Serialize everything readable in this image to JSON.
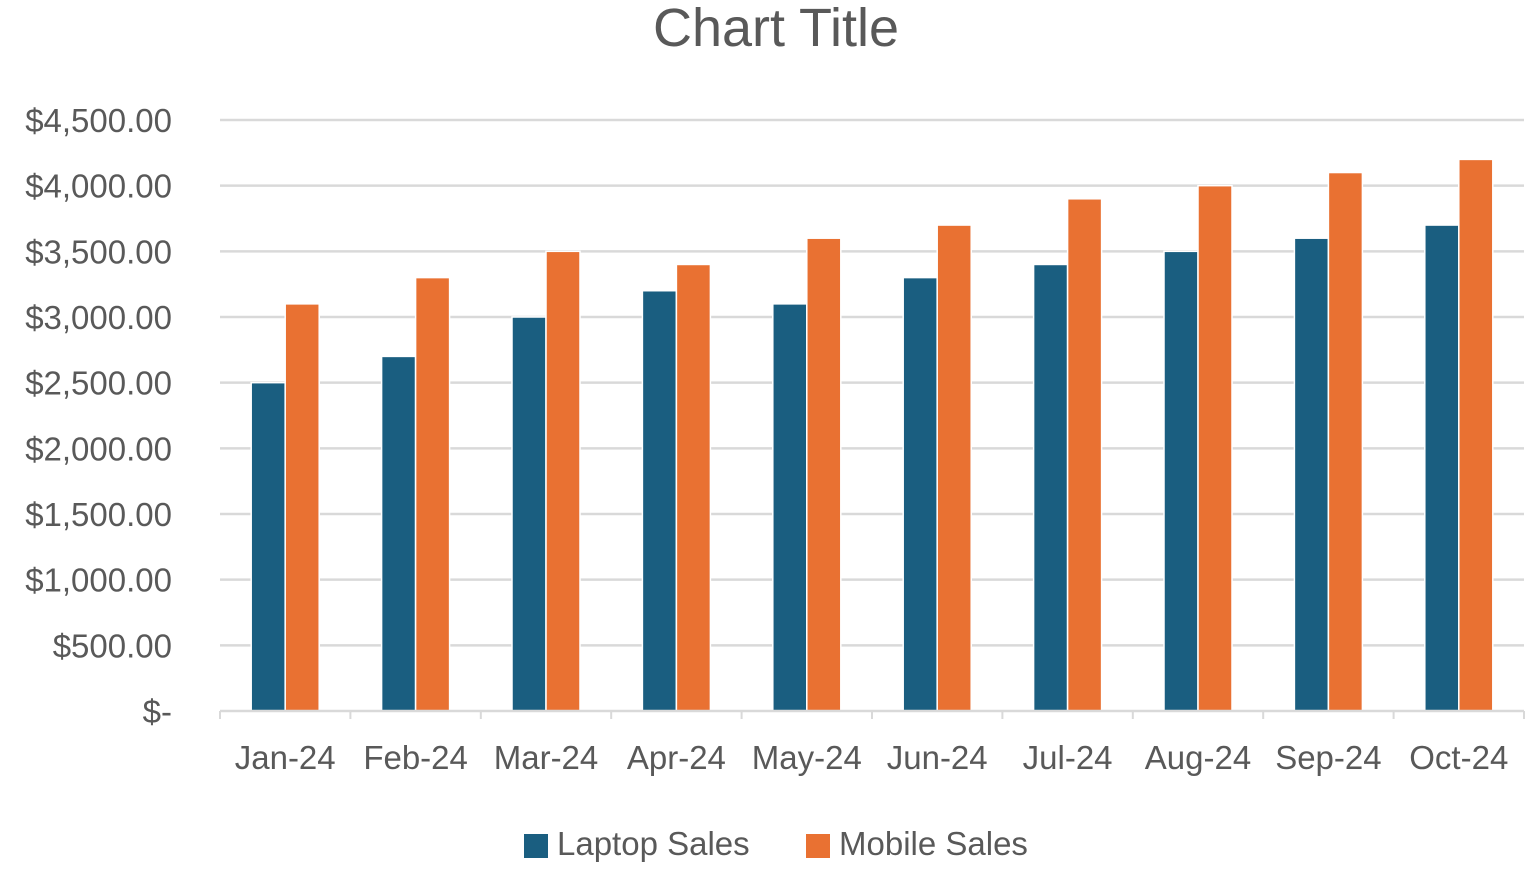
{
  "chart_data": {
    "type": "bar",
    "title": "Chart Title",
    "categories": [
      "Jan-24",
      "Feb-24",
      "Mar-24",
      "Apr-24",
      "May-24",
      "Jun-24",
      "Jul-24",
      "Aug-24",
      "Sep-24",
      "Oct-24"
    ],
    "series": [
      {
        "name": "Laptop Sales",
        "color": "#1a5e80",
        "values": [
          2500,
          2700,
          3000,
          3200,
          3100,
          3300,
          3400,
          3500,
          3600,
          3700
        ]
      },
      {
        "name": "Mobile Sales",
        "color": "#e97132",
        "values": [
          3100,
          3300,
          3500,
          3400,
          3600,
          3700,
          3900,
          4000,
          4100,
          4200
        ]
      }
    ],
    "ylim": [
      0,
      4500
    ],
    "yticks": [
      0,
      500,
      1000,
      1500,
      2000,
      2500,
      3000,
      3500,
      4000,
      4500
    ],
    "ytick_labels": [
      "$-",
      "$500.00",
      "$1,000.00",
      "$1,500.00",
      "$2,000.00",
      "$2,500.00",
      "$3,000.00",
      "$3,500.00",
      "$4,000.00",
      "$4,500.00"
    ],
    "grid": true,
    "legend_position": "bottom"
  }
}
